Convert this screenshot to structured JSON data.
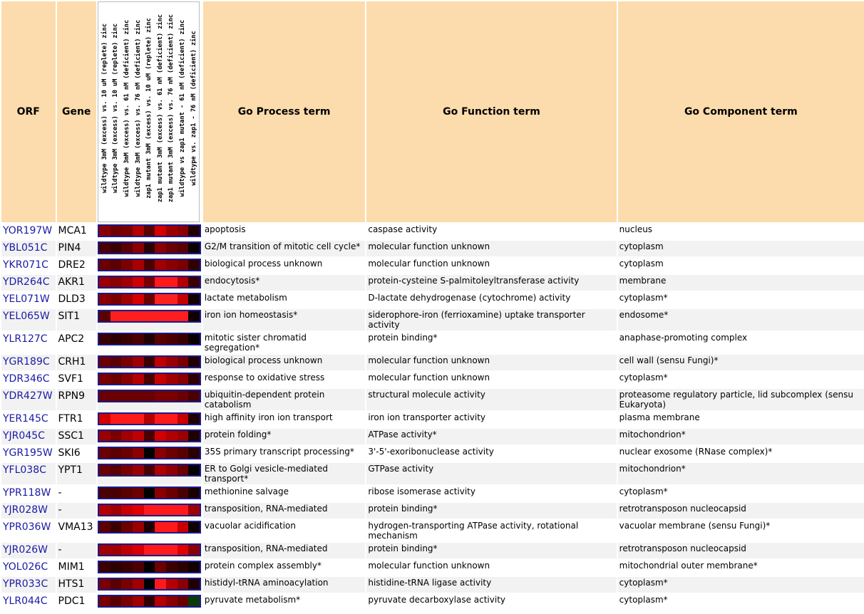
{
  "headers": {
    "orf": "ORF",
    "gene": "Gene",
    "process": "Go Process term",
    "function": "Go Function term",
    "component": "Go Component term",
    "experiments": [
      "wildtype 3mM (excess) vs. 10 uM (replete) zinc",
      "wildtype 3mM (excess) vs. 10 uM (replete) zinc",
      "wildtype 3mM (excess) vs. 61 nM (deficient) zinc",
      "wildtype 3mM (excess) vs. 76 nM (deficient) zinc",
      "zap1 mutant 3mM (excess) vs. 10 uM (replete) zinc",
      "zap1 mutant 3mM (excess) vs. 61 nM (deficient) zinc",
      "zap1 mutant 3mM (excess) vs. 76 nM (deficient) zinc",
      "wildtype vs zap1 mutant - 61 nM (deficient) zinc",
      "wildtype vs. zap1 - 76 nM (deficient) zinc"
    ]
  },
  "rows": [
    {
      "orf": "YOR197W",
      "gene": "MCA1",
      "process": "apoptosis",
      "function": "caspase activity",
      "component": "nucleus",
      "heat": [
        "#8a0000",
        "#6e0000",
        "#7a0000",
        "#b00000",
        "#5a0000",
        "#d40000",
        "#9a0000",
        "#8a0000",
        "#200000"
      ]
    },
    {
      "orf": "YBL051C",
      "gene": "PIN4",
      "process": "G2/M transition of mitotic cell cycle*",
      "function": "molecular function unknown",
      "component": "cytoplasm",
      "heat": [
        "#4a0000",
        "#3a0000",
        "#5a0000",
        "#8a0000",
        "#2a0000",
        "#8a0000",
        "#6a0000",
        "#5a0000",
        "#0a0000"
      ]
    },
    {
      "orf": "YKR071C",
      "gene": "DRE2",
      "process": "biological process unknown",
      "function": "molecular function unknown",
      "component": "cytoplasm",
      "heat": [
        "#6a0000",
        "#5a0000",
        "#7a0000",
        "#a80000",
        "#4a0000",
        "#a00000",
        "#8a0000",
        "#7a0000",
        "#300000"
      ]
    },
    {
      "orf": "YDR264C",
      "gene": "AKR1",
      "process": "endocytosis*",
      "function": "protein-cysteine S-palmitoleyltransferase activity",
      "component": "membrane",
      "heat": [
        "#9a0000",
        "#8a0000",
        "#a00000",
        "#d00000",
        "#7a0000",
        "#ff1a1a",
        "#ff1a1a",
        "#b40000",
        "#3a0000"
      ]
    },
    {
      "orf": "YEL071W",
      "gene": "DLD3",
      "process": "lactate metabolism",
      "function": "D-lactate dehydrogenase (cytochrome) activity",
      "component": "cytoplasm*",
      "heat": [
        "#8a0000",
        "#7a0000",
        "#a00000",
        "#d40000",
        "#6a0000",
        "#ff2020",
        "#ff2020",
        "#c40000",
        "#100000"
      ]
    },
    {
      "orf": "YEL065W",
      "gene": "SIT1",
      "process": "iron ion homeostasis*",
      "function": "siderophore-iron (ferrioxamine) uptake transporter activity",
      "component": "endosome*",
      "heat": [
        "#5a0000",
        "#ff1e1e",
        "#ff1e1e",
        "#ff1e1e",
        "#ff1e1e",
        "#ff1e1e",
        "#ff1e1e",
        "#ff1e1e",
        "#100000"
      ]
    },
    {
      "orf": "YLR127C",
      "gene": "APC2",
      "process": "mitotic sister chromatid segregation*",
      "function": "protein binding*",
      "component": "anaphase-promoting complex",
      "heat": [
        "#3a0000",
        "#2a0000",
        "#3a0000",
        "#4a0000",
        "#200000",
        "#5a0000",
        "#4a0000",
        "#3a0000",
        "#0a0000"
      ]
    },
    {
      "orf": "YGR189C",
      "gene": "CRH1",
      "process": "biological process unknown",
      "function": "molecular function unknown",
      "component": "cell wall (sensu Fungi)*",
      "heat": [
        "#6a0000",
        "#5a0000",
        "#7a0000",
        "#a00000",
        "#3a0000",
        "#c00000",
        "#9a0000",
        "#7a0000",
        "#200000"
      ]
    },
    {
      "orf": "YDR346C",
      "gene": "SVF1",
      "process": "response to oxidative stress",
      "function": "molecular function unknown",
      "component": "cytoplasm*",
      "heat": [
        "#7a0000",
        "#6a0000",
        "#8a0000",
        "#b40000",
        "#4a0000",
        "#c80000",
        "#a00000",
        "#8a0000",
        "#300000"
      ]
    },
    {
      "orf": "YDR427W",
      "gene": "RPN9",
      "process": "ubiquitin-dependent protein catabolism",
      "function": "structural molecule activity",
      "component": "proteasome regulatory particle, lid subcomplex (sensu Eukaryota)",
      "heat": [
        "#6a0000",
        "#6a0000",
        "#6a0000",
        "#6a0000",
        "#6a0000",
        "#7a0000",
        "#7a0000",
        "#6a0000",
        "#4a0000"
      ]
    },
    {
      "orf": "YER145C",
      "gene": "FTR1",
      "process": "high affinity iron ion transport",
      "function": "iron ion transporter activity",
      "component": "plasma membrane",
      "heat": [
        "#d40000",
        "#ff1a1a",
        "#ff1a1a",
        "#ff1a1a",
        "#b40000",
        "#ff1a1a",
        "#ff1a1a",
        "#c80000",
        "#200000"
      ]
    },
    {
      "orf": "YJR045C",
      "gene": "SSC1",
      "process": "protein folding*",
      "function": "ATPase activity*",
      "component": "mitochondrion*",
      "heat": [
        "#9a0000",
        "#7a0000",
        "#a00000",
        "#c00000",
        "#4a0000",
        "#d00000",
        "#b00000",
        "#9a0000",
        "#200000"
      ]
    },
    {
      "orf": "YGR195W",
      "gene": "SKI6",
      "process": "35S primary transcript processing*",
      "function": "3'-5'-exoribonuclease activity",
      "component": "nuclear exosome (RNase complex)*",
      "heat": [
        "#6a0000",
        "#5a0000",
        "#6a0000",
        "#8a0000",
        "#000000",
        "#8a0000",
        "#6a0000",
        "#5a0000",
        "#2a0000"
      ]
    },
    {
      "orf": "YFL038C",
      "gene": "YPT1",
      "process": "ER to Golgi vesicle-mediated transport*",
      "function": "GTPase activity",
      "component": "mitochondrion*",
      "heat": [
        "#6a0000",
        "#5a0000",
        "#7a0000",
        "#9a0000",
        "#4a0000",
        "#b00000",
        "#900000",
        "#6a0000",
        "#050000"
      ]
    },
    {
      "orf": "YPR118W",
      "gene": "-",
      "process": "methionine salvage",
      "function": "ribose isomerase activity",
      "component": "cytoplasm*",
      "heat": [
        "#4a0000",
        "#4a0000",
        "#5a0000",
        "#6a0000",
        "#000000",
        "#8a0000",
        "#6a0000",
        "#4a0000",
        "#1a0000"
      ]
    },
    {
      "orf": "YJR028W",
      "gene": "-",
      "process": "transposition, RNA-mediated",
      "function": "protein binding*",
      "component": "retrotransposon nucleocapsid",
      "heat": [
        "#b40000",
        "#a00000",
        "#c80000",
        "#e00000",
        "#ff1a1a",
        "#ff1a1a",
        "#ff1a1a",
        "#ff1a1a",
        "#a00000"
      ]
    },
    {
      "orf": "YPR036W",
      "gene": "VMA13",
      "process": "vacuolar acidification",
      "function": "hydrogen-transporting ATPase activity, rotational mechanism",
      "component": "vacuolar membrane (sensu Fungi)*",
      "heat": [
        "#5a0000",
        "#3a0000",
        "#6a0000",
        "#9a0000",
        "#200000",
        "#ff1a1a",
        "#ff1a1a",
        "#c80000",
        "#100000"
      ]
    },
    {
      "orf": "YJR026W",
      "gene": "-",
      "process": "transposition, RNA-mediated",
      "function": "protein binding*",
      "component": "retrotransposon nucleocapsid",
      "heat": [
        "#a00000",
        "#a00000",
        "#c00000",
        "#d80000",
        "#ff1a1a",
        "#ff1a1a",
        "#ff1a1a",
        "#e00000",
        "#8a0000"
      ]
    },
    {
      "orf": "YOL026C",
      "gene": "MIM1",
      "process": "protein complex assembly*",
      "function": "molecular function unknown",
      "component": "mitochondrial outer membrane*",
      "heat": [
        "#3a0000",
        "#2a0000",
        "#3a0000",
        "#4a0000",
        "#050000",
        "#6a0000",
        "#3a0000",
        "#2a0000",
        "#100000"
      ]
    },
    {
      "orf": "YPR033C",
      "gene": "HTS1",
      "process": "histidyl-tRNA aminoacylation",
      "function": "histidine-tRNA ligase activity",
      "component": "cytoplasm*",
      "heat": [
        "#7a0000",
        "#5a0000",
        "#7a0000",
        "#a00000",
        "#000000",
        "#ff1a1a",
        "#b40000",
        "#8a0000",
        "#200000"
      ]
    },
    {
      "orf": "YLR044C",
      "gene": "PDC1",
      "process": "pyruvate metabolism*",
      "function": "pyruvate decarboxylase activity",
      "component": "cytoplasm*",
      "heat": [
        "#7a0000",
        "#5a0000",
        "#7a0000",
        "#a00000",
        "#300000",
        "#b40000",
        "#8a0000",
        "#6a0000",
        "#0a3a0a"
      ]
    }
  ]
}
